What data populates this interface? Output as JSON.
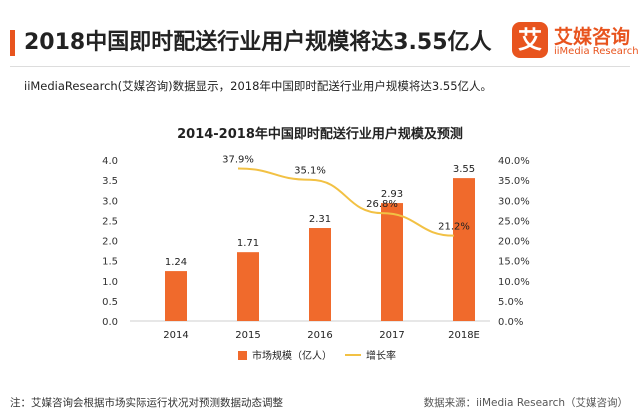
{
  "header": {
    "headline": "2018中国即时配送行业用户规模将达3.55亿人"
  },
  "logo": {
    "mark": "艾",
    "name": "艾媒咨询",
    "sub": "iiMedia Research"
  },
  "intro": "iiMediaResearch(艾媒咨询)数据显示，2018年中国即时配送行业用户规模将达3.55亿人。",
  "colors": {
    "bar": "#f06a2c",
    "line": "#f2c144",
    "accent": "#e8541e"
  },
  "chart_data": {
    "type": "bar",
    "title": "2014-2018年中国即时配送行业用户规模及预测",
    "categories": [
      "2014",
      "2015",
      "2016",
      "2017",
      "2018E"
    ],
    "series": [
      {
        "name": "市场规模（亿人）",
        "type": "bar",
        "values": [
          1.24,
          1.71,
          2.31,
          2.93,
          3.55
        ],
        "labels": [
          "1.24",
          "1.71",
          "2.31",
          "2.93",
          "3.55"
        ]
      },
      {
        "name": "增长率",
        "type": "line",
        "values": [
          null,
          37.9,
          35.1,
          26.8,
          21.2
        ],
        "labels": [
          "",
          "37.9%",
          "35.1%",
          "26.8%",
          "21.2%"
        ]
      }
    ],
    "y_left": {
      "ylim": [
        0,
        4.0
      ],
      "ticks": [
        "0.0",
        "0.5",
        "1.0",
        "1.5",
        "2.0",
        "2.5",
        "3.0",
        "3.5",
        "4.0"
      ]
    },
    "y_right": {
      "ylim": [
        0,
        40
      ],
      "ticks": [
        "0.0%",
        "5.0%",
        "10.0%",
        "15.0%",
        "20.0%",
        "25.0%",
        "30.0%",
        "35.0%",
        "40.0%"
      ]
    },
    "grid": false,
    "legend_position": "bottom"
  },
  "footer": {
    "note": "注：艾媒咨询会根据市场实际运行状况对预测数据动态调整",
    "source": "数据来源：iiMedia Research（艾媒咨询）"
  }
}
